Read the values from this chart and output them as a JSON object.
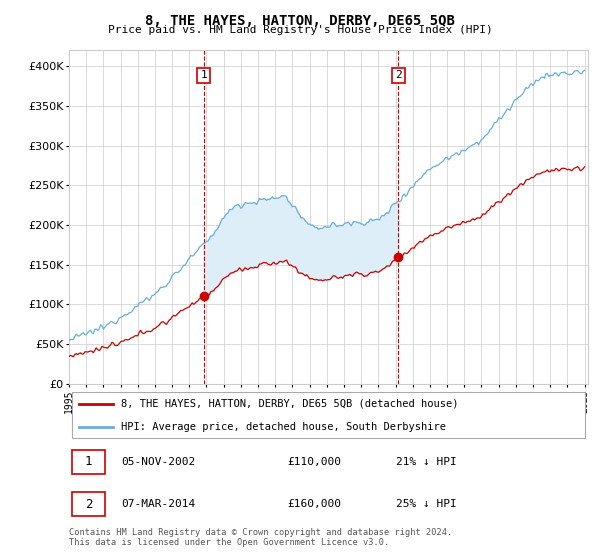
{
  "title": "8, THE HAYES, HATTON, DERBY, DE65 5QB",
  "subtitle": "Price paid vs. HM Land Registry's House Price Index (HPI)",
  "hpi_label": "HPI: Average price, detached house, South Derbyshire",
  "property_label": "8, THE HAYES, HATTON, DERBY, DE65 5QB (detached house)",
  "sale1_date": "05-NOV-2002",
  "sale1_price": 110000,
  "sale1_pct": "21% ↓ HPI",
  "sale2_date": "07-MAR-2014",
  "sale2_price": 160000,
  "sale2_pct": "25% ↓ HPI",
  "footer": "Contains HM Land Registry data © Crown copyright and database right 2024.\nThis data is licensed under the Open Government Licence v3.0.",
  "hpi_color": "#6baed6",
  "hpi_fill_color": "#ddeef8",
  "property_color": "#cc0000",
  "dashed_line_color": "#cc0000",
  "ylim_min": 0,
  "ylim_max": 420000,
  "ytick_interval": 50000,
  "start_year": 1995,
  "end_year": 2025,
  "bg_color": "#ffffff",
  "grid_color": "#cccccc",
  "title_fontsize": 10,
  "subtitle_fontsize": 8,
  "tick_fontsize": 7,
  "legend_fontsize": 7.5,
  "table_fontsize": 8
}
